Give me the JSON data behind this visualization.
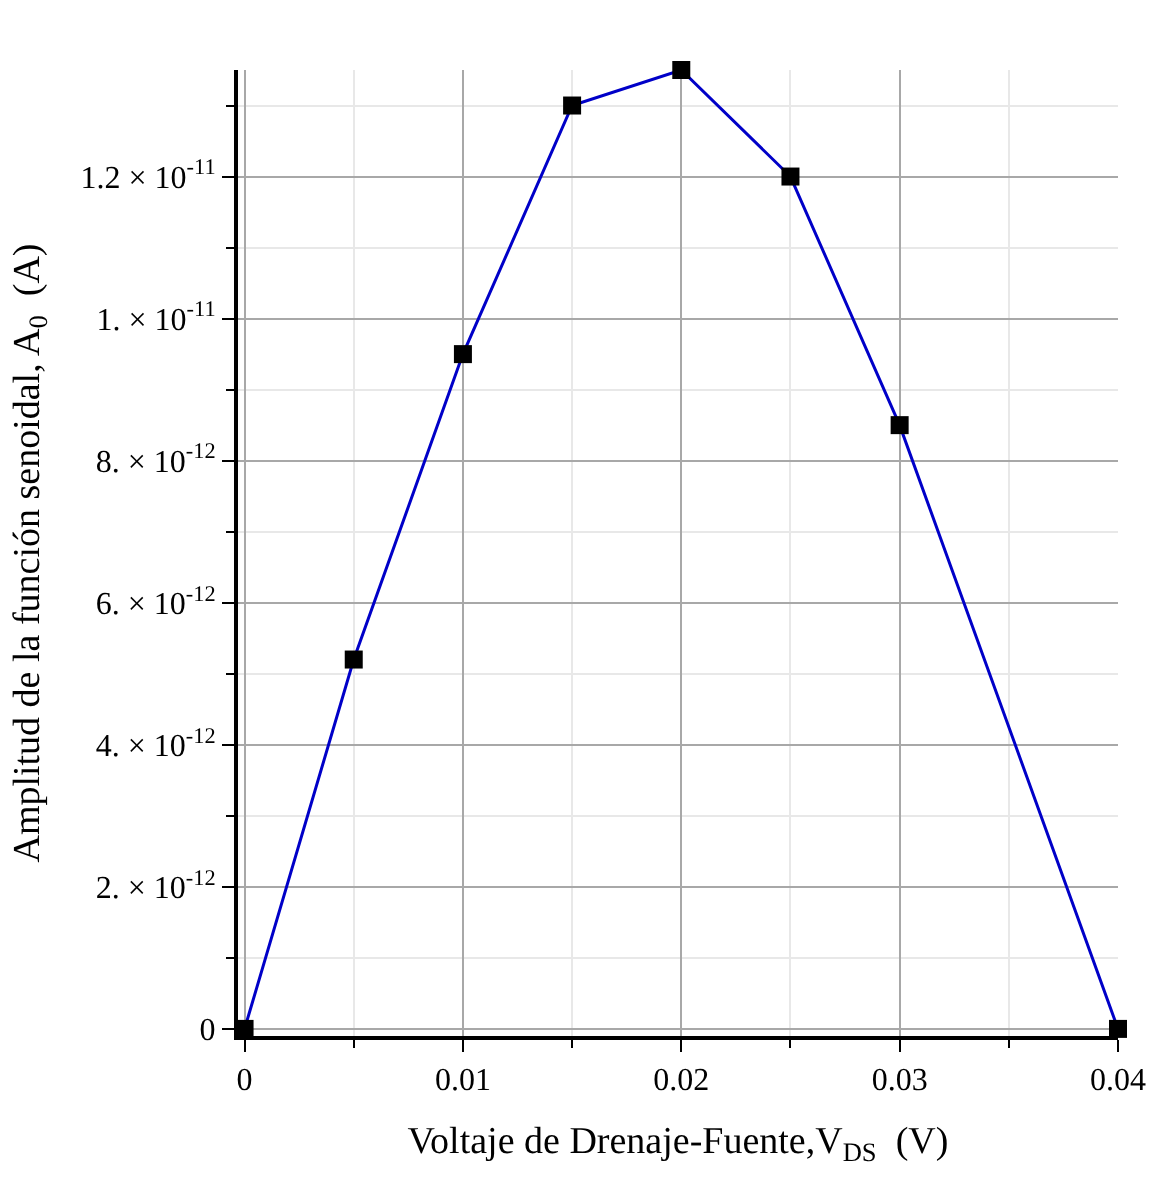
{
  "chart_data": {
    "type": "line",
    "xlabel": "Voltaje de Drenaje-Fuente,V$_{DS}$  (V)",
    "ylabel": "Amplitud de la función senoidal, A$_{0}$  (A)",
    "x": [
      0,
      0.005,
      0.01,
      0.015,
      0.02,
      0.025,
      0.03,
      0.04
    ],
    "series": [
      {
        "color": "#0000c8",
        "values": [
          0,
          5.2e-12,
          9.5e-12,
          1.3e-11,
          1.35e-11,
          1.2e-11,
          8.5e-12,
          0
        ]
      }
    ],
    "marker": "square",
    "line_style": "solid",
    "grid": true,
    "xlim": [
      -0.0003,
      0.04
    ],
    "ylim": [
      -1e-13,
      1.35e-11
    ],
    "xticks": [
      0,
      {
        "value": 0.005,
        "label": null
      },
      0.01,
      {
        "value": 0.015,
        "label": null
      },
      0.02,
      {
        "value": 0.025,
        "label": null
      },
      0.03,
      {
        "value": 0.035,
        "label": null
      },
      0.04
    ],
    "yticks": [
      0,
      {
        "value": 1e-12,
        "label": null
      },
      {
        "value": 2e-12,
        "label": "2. × 10$^{-12}$"
      },
      {
        "value": 3e-12,
        "label": null
      },
      {
        "value": 4e-12,
        "label": "4. × 10$^{-12}$"
      },
      {
        "value": 5e-12,
        "label": null
      },
      {
        "value": 6e-12,
        "label": "6. × 10$^{-12}$"
      },
      {
        "value": 7e-12,
        "label": null
      },
      {
        "value": 8e-12,
        "label": "8. × 10$^{-12}$"
      },
      {
        "value": 9e-12,
        "label": null
      },
      {
        "value": 1e-11,
        "label": "1. × 10$^{-11}$"
      },
      {
        "value": 1.1e-11,
        "label": null
      },
      {
        "value": 1.2e-11,
        "label": "1.2 × 10$^{-11}$"
      },
      {
        "value": 1.3e-11,
        "label": null
      }
    ]
  }
}
